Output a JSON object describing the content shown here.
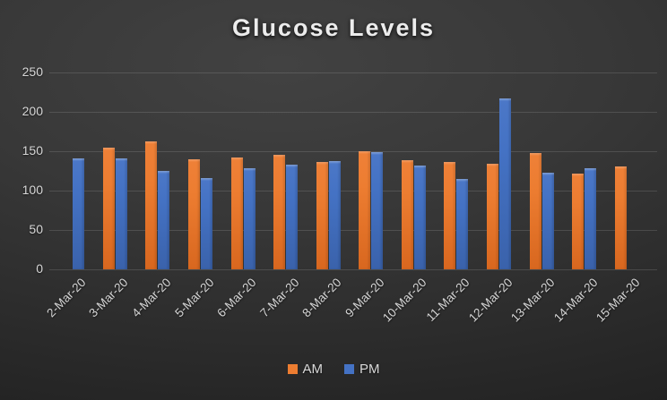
{
  "title": "Glucose Levels",
  "colors": {
    "am_series": "#ED7D31",
    "pm_series": "#4472C4",
    "text": "#D9D9D9",
    "background_dark": "#2B2B2B"
  },
  "legend": {
    "items": [
      {
        "label": "AM",
        "color": "#ED7D31"
      },
      {
        "label": "PM",
        "color": "#4472C4"
      }
    ]
  },
  "chart_data": {
    "type": "bar",
    "title": "Glucose Levels",
    "categories": [
      "2-Mar-20",
      "3-Mar-20",
      "4-Mar-20",
      "5-Mar-20",
      "6-Mar-20",
      "7-Mar-20",
      "8-Mar-20",
      "9-Mar-20",
      "10-Mar-20",
      "11-Mar-20",
      "12-Mar-20",
      "13-Mar-20",
      "14-Mar-20",
      "15-Mar-20"
    ],
    "series": [
      {
        "name": "AM",
        "color": "#ED7D31",
        "values": [
          null,
          154,
          163,
          140,
          142,
          145,
          136,
          150,
          139,
          136,
          134,
          148,
          122,
          131
        ]
      },
      {
        "name": "PM",
        "color": "#4472C4",
        "values": [
          141,
          141,
          125,
          116,
          128,
          133,
          138,
          149,
          132,
          115,
          217,
          123,
          128,
          null
        ]
      }
    ],
    "xlabel": "",
    "ylabel": "",
    "ylim": [
      0,
      250
    ],
    "yticks": [
      0,
      50,
      100,
      150,
      200,
      250
    ],
    "grid": true,
    "legend_position": "bottom",
    "x_tick_rotation_deg": 45
  }
}
